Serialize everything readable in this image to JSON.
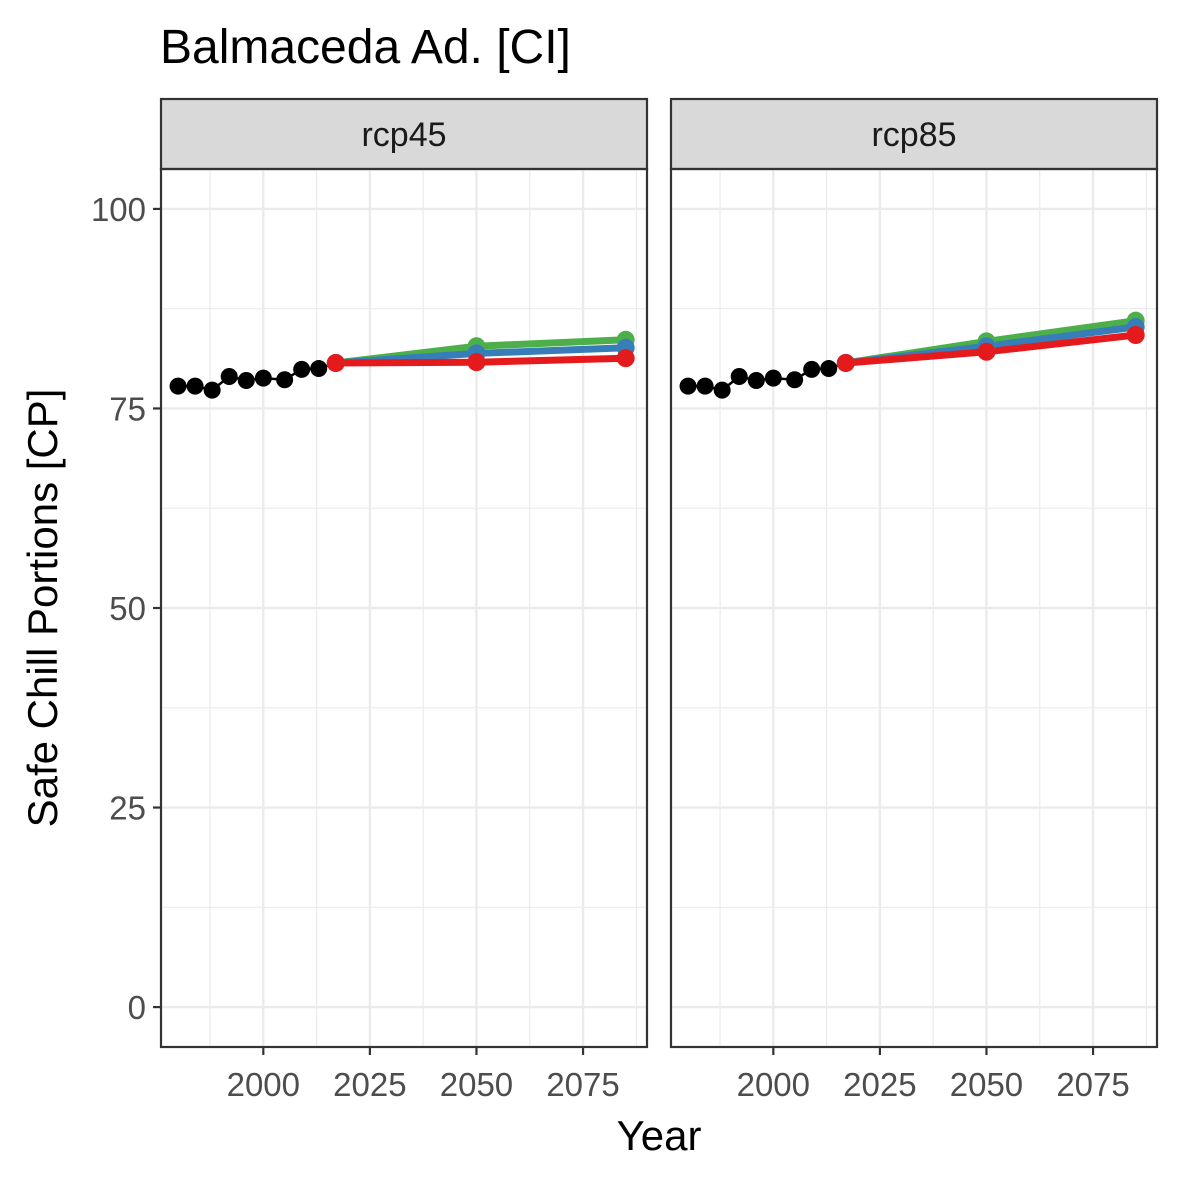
{
  "chart_data": {
    "type": "line",
    "title": "Balmaceda Ad. [CI]",
    "xlabel": "Year",
    "ylabel": "Safe Chill Portions [CP]",
    "xlim": [
      1976,
      2090
    ],
    "ylim": [
      -5,
      105
    ],
    "x_ticks": [
      2000,
      2025,
      2050,
      2075
    ],
    "y_ticks": [
      0,
      25,
      50,
      75,
      100
    ],
    "grid": true,
    "colors": {
      "historic": "#000000",
      "green": "#4DAF4A",
      "blue": "#377EB8",
      "red": "#E41A1C",
      "strip_fill": "#D9D9D9",
      "panel_border": "#333333",
      "grid_major": "#EBEBEB"
    },
    "panels": [
      {
        "label": "rcp45",
        "historic": {
          "x": [
            1980,
            1984,
            1988,
            1992,
            1996,
            2000,
            2005,
            2009,
            2013
          ],
          "y": [
            77.8,
            77.8,
            77.3,
            79.0,
            78.5,
            78.8,
            78.6,
            79.9,
            80.0
          ]
        },
        "series": [
          {
            "color": "green",
            "x": [
              2017,
              2050,
              2085
            ],
            "y": [
              80.7,
              82.8,
              83.6
            ]
          },
          {
            "color": "blue",
            "x": [
              2017,
              2050,
              2085
            ],
            "y": [
              80.7,
              81.9,
              82.6
            ]
          },
          {
            "color": "red",
            "x": [
              2017,
              2050,
              2085
            ],
            "y": [
              80.7,
              80.8,
              81.3
            ]
          }
        ]
      },
      {
        "label": "rcp85",
        "historic": {
          "x": [
            1980,
            1984,
            1988,
            1992,
            1996,
            2000,
            2005,
            2009,
            2013
          ],
          "y": [
            77.8,
            77.8,
            77.3,
            79.0,
            78.5,
            78.8,
            78.6,
            79.9,
            80.0
          ]
        },
        "series": [
          {
            "color": "green",
            "x": [
              2017,
              2050,
              2085
            ],
            "y": [
              80.7,
              83.4,
              86.0
            ]
          },
          {
            "color": "blue",
            "x": [
              2017,
              2050,
              2085
            ],
            "y": [
              80.7,
              82.8,
              85.2
            ]
          },
          {
            "color": "red",
            "x": [
              2017,
              2050,
              2085
            ],
            "y": [
              80.7,
              82.1,
              84.2
            ]
          }
        ]
      }
    ]
  }
}
